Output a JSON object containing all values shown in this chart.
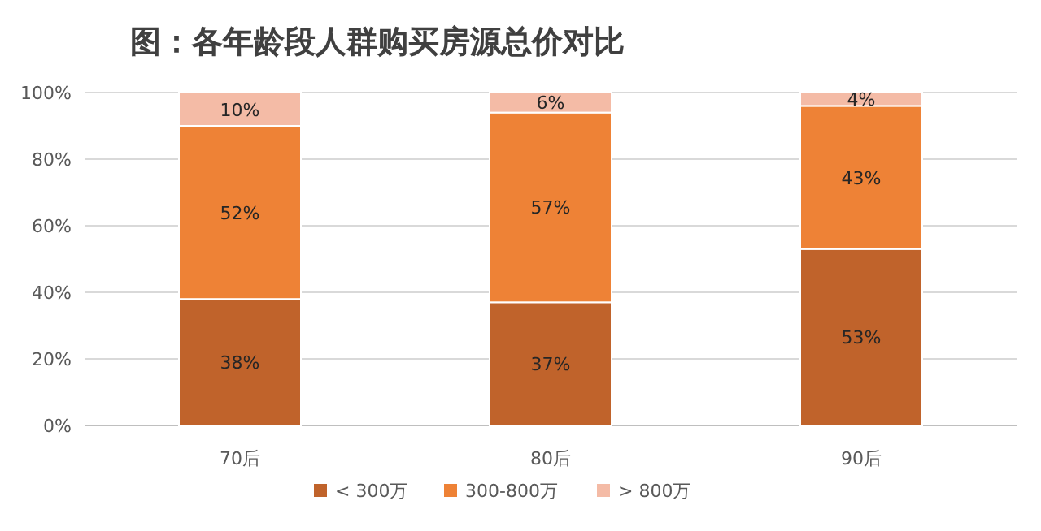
{
  "chart_data": {
    "type": "bar",
    "title": "图：各年龄段人群购买房源总价对比",
    "categories": [
      "70后",
      "80后",
      "90后"
    ],
    "stacked": true,
    "series": [
      {
        "name": "< 300万",
        "color": "#c0632b",
        "values": [
          38,
          37,
          53
        ],
        "value_labels": [
          "38%",
          "37%",
          "53%"
        ]
      },
      {
        "name": "300-800万",
        "color": "#ee8236",
        "values": [
          52,
          57,
          43
        ],
        "value_labels": [
          "52%",
          "57%",
          "43%"
        ]
      },
      {
        "name": "> 800万",
        "color": "#f4bba6",
        "values": [
          10,
          6,
          4
        ],
        "value_labels": [
          "10%",
          "6%",
          "4%"
        ]
      }
    ],
    "ylim": [
      0,
      100
    ],
    "yticks": [
      {
        "value": 0,
        "label": "0%"
      },
      {
        "value": 20,
        "label": "20%"
      },
      {
        "value": 40,
        "label": "40%"
      },
      {
        "value": 60,
        "label": "60%"
      },
      {
        "value": 80,
        "label": "80%"
      },
      {
        "value": 100,
        "label": "100%"
      }
    ],
    "grid": "y",
    "legend": "bottom"
  }
}
